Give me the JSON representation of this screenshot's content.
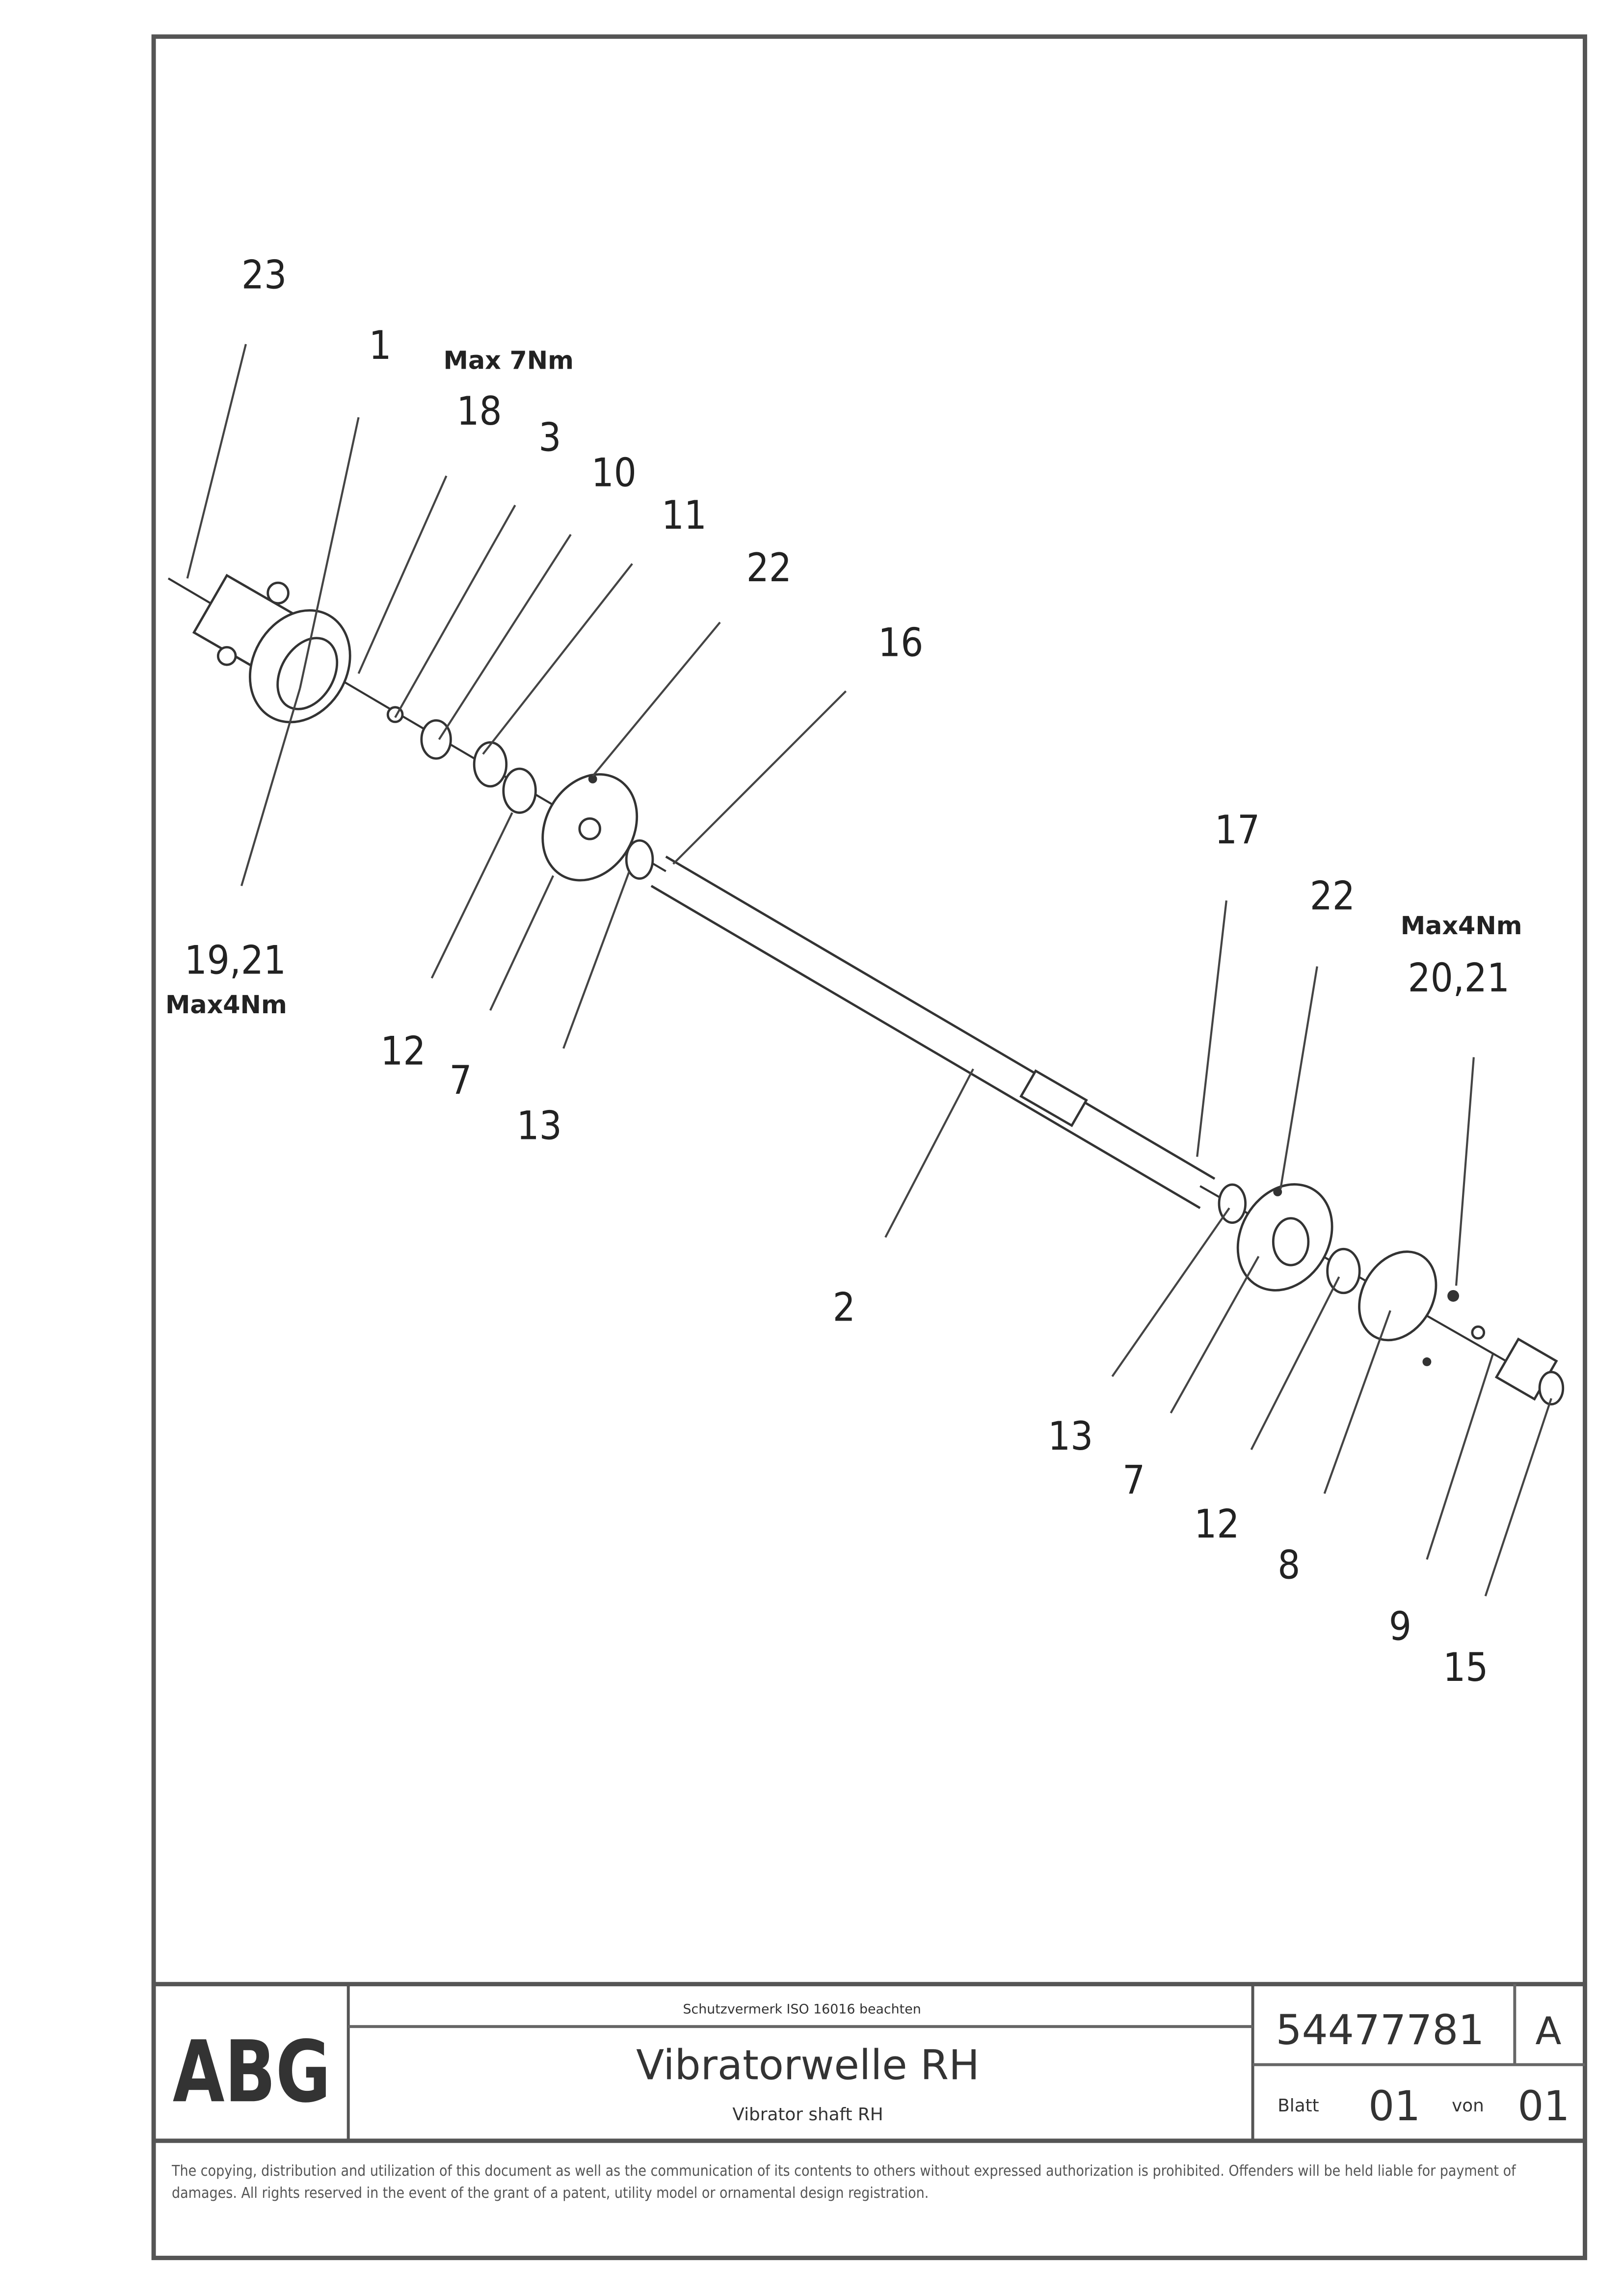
{
  "drawing": {
    "callouts": {
      "c23": "23",
      "c1": "1",
      "c18": "18",
      "c3": "3",
      "c10": "10",
      "c11": "11",
      "c22a": "22",
      "c16": "16",
      "c1921": "19,21",
      "c12a": "12",
      "c7a": "7",
      "c13a": "13",
      "c2": "2",
      "c17": "17",
      "c22b": "22",
      "c2021": "20,21",
      "c13b": "13",
      "c7b": "7",
      "c12b": "12",
      "c8": "8",
      "c9": "9",
      "c15": "15"
    },
    "torques": {
      "t18": "Max 7Nm",
      "t1921": "Max4Nm",
      "t2021": "Max4Nm"
    }
  },
  "title_block": {
    "logo": "ABG",
    "protection_note": "Schutzvermerk ISO 16016 beachten",
    "title": "Vibratorwelle RH",
    "subtitle": "Vibrator shaft RH",
    "drawing_number": "54477781",
    "revision": "A",
    "sheet_label": "Blatt",
    "sheet": "01",
    "of_label": "von",
    "sheets_total": "01"
  },
  "footer": {
    "copyright": "The copying, distribution and utilization of this document as well as the communication of its contents to others without expressed authorization is prohibited. Offenders will be held liable for payment of damages. All rights reserved in the event of the grant of a patent, utility model or ornamental design registration."
  }
}
